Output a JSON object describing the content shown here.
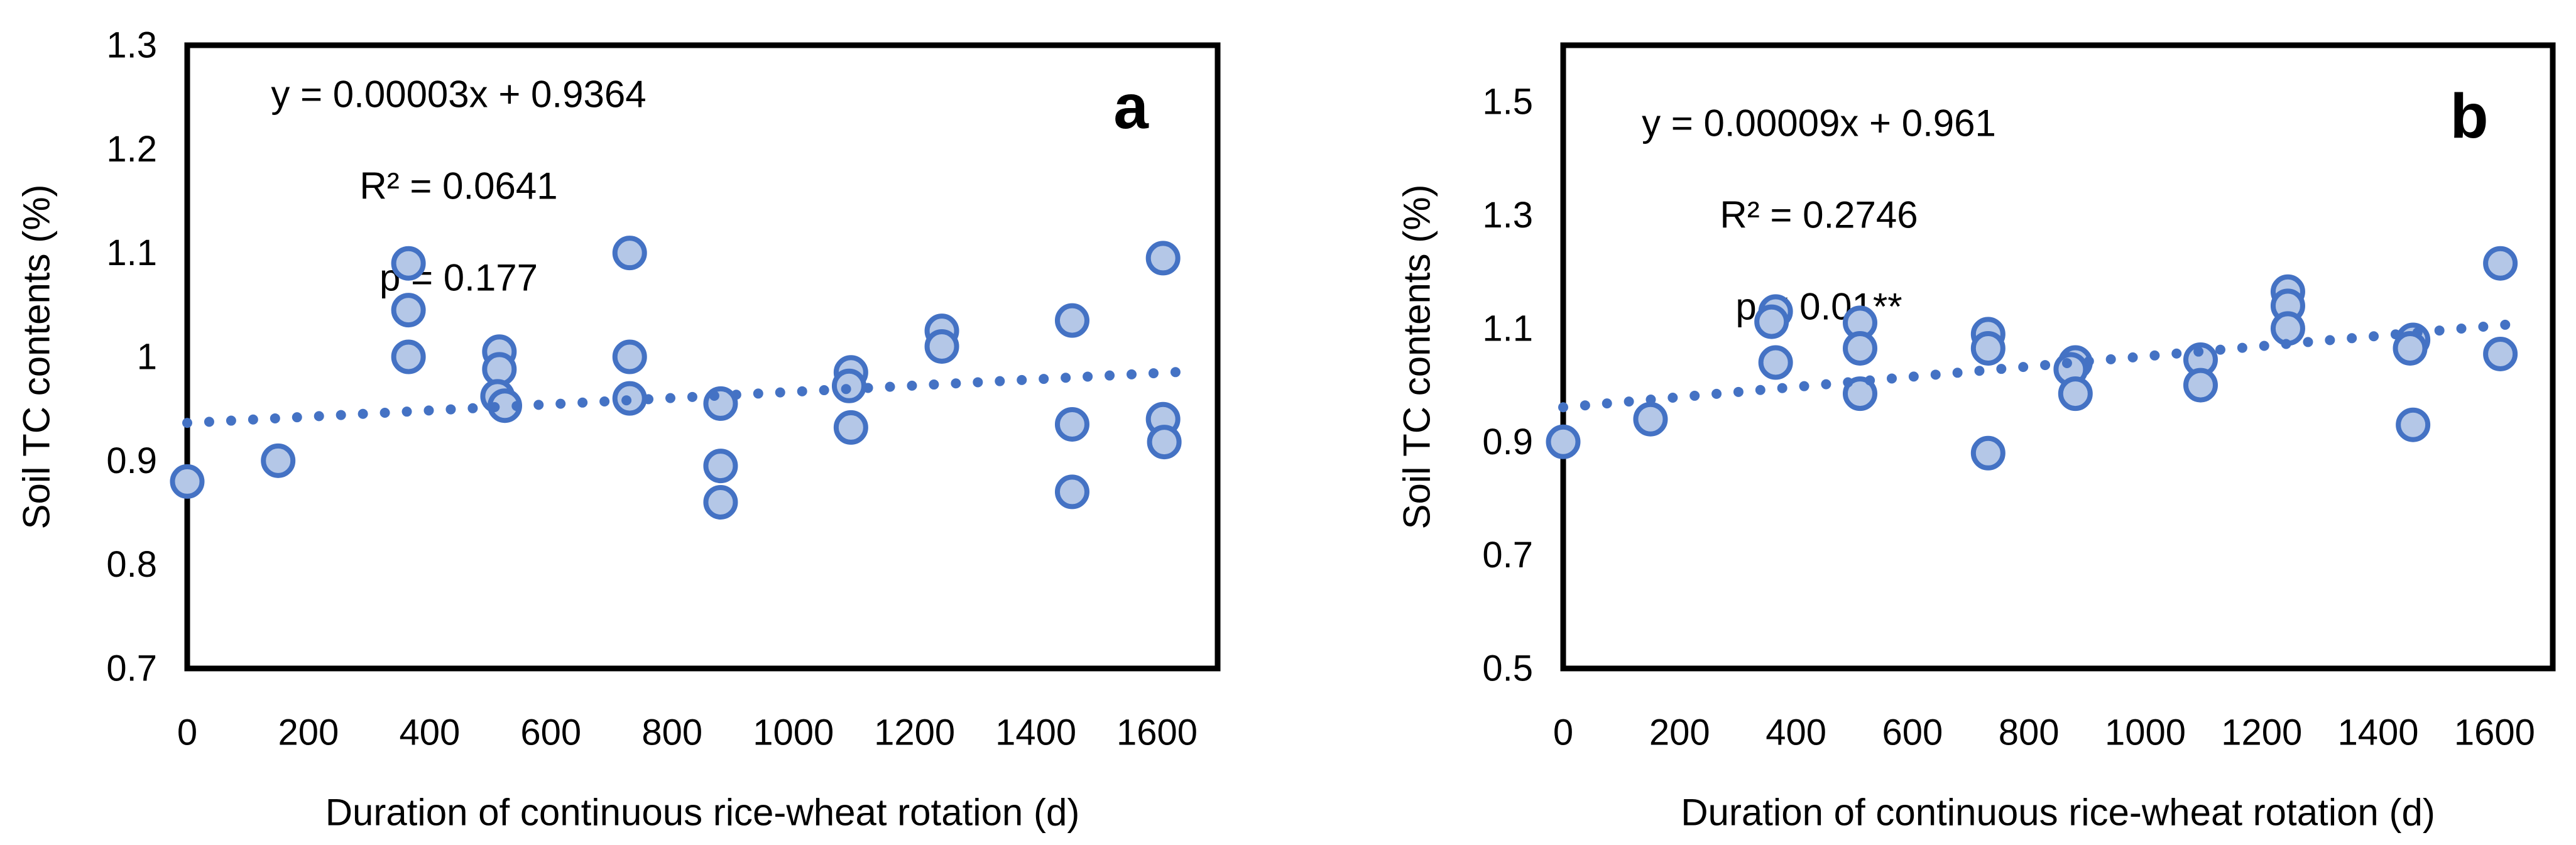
{
  "figure": {
    "background": "#ffffff",
    "colors": {
      "marker_fill": "#b4c7e7",
      "marker_stroke": "#4472c4",
      "trend_line": "#4472c4",
      "axis": "#000000",
      "text": "#000000"
    }
  },
  "chart_data": [
    {
      "type": "scatter",
      "panel_label": "a",
      "title": "",
      "xlabel": "Duration of continuous rice-wheat rotation  (d)",
      "ylabel": "Soil TC contents  (%)",
      "xlim": [
        0,
        1700
      ],
      "ylim": [
        0.7,
        1.3
      ],
      "xticks": [
        0,
        200,
        400,
        600,
        800,
        1000,
        1200,
        1400,
        1600
      ],
      "xtick_labels": [
        "0",
        "200",
        "400",
        "600",
        "800",
        "1000",
        "1200",
        "1400",
        "1600"
      ],
      "yticks": [
        1.3,
        1.2,
        1.1,
        1.0,
        0.9,
        0.8,
        0.7
      ],
      "ytick_labels": [
        "1.3",
        "1.2",
        "1.1",
        "1",
        "0.9",
        "0.8",
        "0.7"
      ],
      "grid": false,
      "legend": false,
      "annotation": [
        "y = 0.00003x + 0.9364",
        "R² = 0.0641",
        "p = 0.177"
      ],
      "trendline": {
        "slope": 3e-05,
        "intercept": 0.9364,
        "x_start": 0,
        "x_end": 1640,
        "style": "dotted"
      },
      "points": [
        [
          0,
          0.88
        ],
        [
          150,
          0.9
        ],
        [
          365,
          1.09
        ],
        [
          365,
          1.045
        ],
        [
          365,
          1.0
        ],
        [
          515,
          1.005
        ],
        [
          515,
          0.988
        ],
        [
          512,
          0.962
        ],
        [
          524,
          0.953
        ],
        [
          730,
          1.1
        ],
        [
          730,
          1.0
        ],
        [
          730,
          0.96
        ],
        [
          880,
          0.955
        ],
        [
          880,
          0.895
        ],
        [
          880,
          0.86
        ],
        [
          1095,
          0.985
        ],
        [
          1092,
          0.972
        ],
        [
          1095,
          0.932
        ],
        [
          1245,
          1.025
        ],
        [
          1245,
          1.01
        ],
        [
          1460,
          1.035
        ],
        [
          1460,
          0.935
        ],
        [
          1460,
          0.87
        ],
        [
          1610,
          1.095
        ],
        [
          1610,
          0.94
        ],
        [
          1612,
          0.918
        ]
      ]
    },
    {
      "type": "scatter",
      "panel_label": "b",
      "title": "",
      "xlabel": "Duration of continuous rice-wheat rotation  (d)",
      "ylabel": "Soil TC contents  (%)",
      "xlim": [
        0,
        1700
      ],
      "ylim": [
        0.5,
        1.6
      ],
      "xticks": [
        0,
        200,
        400,
        600,
        800,
        1000,
        1200,
        1400,
        1600
      ],
      "xtick_labels": [
        "0",
        "200",
        "400",
        "600",
        "800",
        "1000",
        "1200",
        "1400",
        "1600"
      ],
      "yticks": [
        1.5,
        1.3,
        1.1,
        0.9,
        0.7,
        0.5
      ],
      "ytick_labels": [
        "1.5",
        "1.3",
        "1.1",
        "0.9",
        "0.7",
        "0.5"
      ],
      "grid": false,
      "legend": false,
      "annotation": [
        "y = 0.00009x + 0.961",
        "R² = 0.2746",
        "p < 0.01**"
      ],
      "trendline": {
        "slope": 9e-05,
        "intercept": 0.961,
        "x_start": 0,
        "x_end": 1655,
        "style": "dotted"
      },
      "points": [
        [
          0,
          0.9
        ],
        [
          150,
          0.94
        ],
        [
          365,
          1.13
        ],
        [
          358,
          1.112
        ],
        [
          365,
          1.04
        ],
        [
          510,
          1.11
        ],
        [
          510,
          1.065
        ],
        [
          510,
          0.985
        ],
        [
          730,
          1.09
        ],
        [
          730,
          1.065
        ],
        [
          730,
          0.88
        ],
        [
          880,
          1.04
        ],
        [
          872,
          1.028
        ],
        [
          880,
          0.985
        ],
        [
          1095,
          1.045
        ],
        [
          1095,
          1.0
        ],
        [
          1245,
          1.165
        ],
        [
          1245,
          1.14
        ],
        [
          1245,
          1.1
        ],
        [
          1460,
          1.08
        ],
        [
          1455,
          1.065
        ],
        [
          1460,
          0.93
        ],
        [
          1610,
          1.215
        ],
        [
          1610,
          1.055
        ]
      ]
    }
  ]
}
